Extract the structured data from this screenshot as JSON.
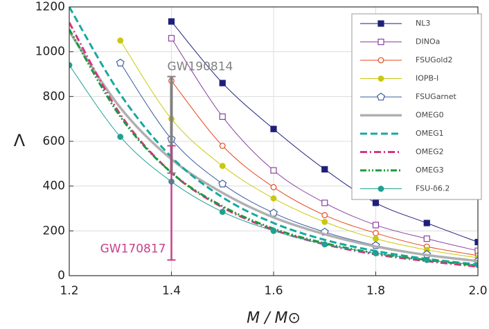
{
  "chart_data": {
    "type": "line",
    "xlabel": "M / M⊙",
    "ylabel": "Λ",
    "x": [
      1.2,
      1.3,
      1.4,
      1.5,
      1.6,
      1.7,
      1.8,
      1.9,
      2.0
    ],
    "xlim": [
      1.2,
      2.0
    ],
    "xticks": [
      1.2,
      1.4,
      1.6,
      1.8,
      {
        "value": 2.0,
        "label": "2.0"
      }
    ],
    "ylim": [
      0,
      1200
    ],
    "yticks": [
      0,
      200,
      400,
      600,
      800,
      1000,
      1200
    ],
    "grid": true,
    "legend": "upper right",
    "series": [
      {
        "name": "NL3",
        "color": "#1f1f7a",
        "marker": "filled-square",
        "linestyle": "solid",
        "values": [
          null,
          null,
          1135,
          860,
          655,
          475,
          325,
          235,
          150
        ]
      },
      {
        "name": "DINOa",
        "color": "#8b3fa0",
        "marker": "open-square",
        "linestyle": "solid",
        "values": [
          null,
          null,
          1060,
          710,
          470,
          325,
          226,
          165,
          111
        ]
      },
      {
        "name": "FSUGold2",
        "color": "#e8461b",
        "marker": "open-circle",
        "linestyle": "solid",
        "values": [
          null,
          null,
          870,
          580,
          395,
          270,
          190,
          130,
          90
        ]
      },
      {
        "name": "IOPB-I",
        "color": "#c8c810",
        "marker": "filled-circle",
        "linestyle": "solid",
        "values": [
          null,
          1050,
          700,
          490,
          345,
          240,
          165,
          115,
          80
        ]
      },
      {
        "name": "FSUGarnet",
        "color": "#3c5aa0",
        "marker": "open-pentagon",
        "linestyle": "solid",
        "values": [
          null,
          950,
          610,
          410,
          280,
          195,
          135,
          95,
          65
        ]
      },
      {
        "name": "OMEG0",
        "color": "#b0b0b0",
        "marker": "none",
        "linestyle": "thick",
        "values": [
          1090,
          750,
          520,
          370,
          260,
          185,
          130,
          92,
          65
        ]
      },
      {
        "name": "OMEG1",
        "color": "#17a8a0",
        "marker": "none",
        "linestyle": "dashed",
        "values": [
          1200,
          810,
          530,
          350,
          235,
          160,
          110,
          75,
          50
        ]
      },
      {
        "name": "OMEG2",
        "color": "#d63384",
        "marker": "none",
        "linestyle": "dashdot",
        "values": [
          1130,
          720,
          460,
          305,
          205,
          140,
          95,
          65,
          40
        ]
      },
      {
        "name": "OMEG3",
        "color": "#1a9a3a",
        "marker": "none",
        "linestyle": "dashdotdot",
        "values": [
          1100,
          710,
          460,
          310,
          210,
          145,
          100,
          70,
          45
        ]
      },
      {
        "name": "FSU-δ6.2",
        "color": "#20a090",
        "marker": "filled-circle",
        "linestyle": "solid",
        "values": [
          940,
          620,
          420,
          285,
          200,
          140,
          100,
          70,
          48
        ]
      }
    ],
    "annotations": [
      {
        "text": "GW190814",
        "x": 1.4,
        "low": 458,
        "high": 889,
        "color": "#808080"
      },
      {
        "text": "GW170817",
        "x": 1.4,
        "low": 70,
        "high": 580,
        "color": "#c8408a"
      }
    ]
  }
}
